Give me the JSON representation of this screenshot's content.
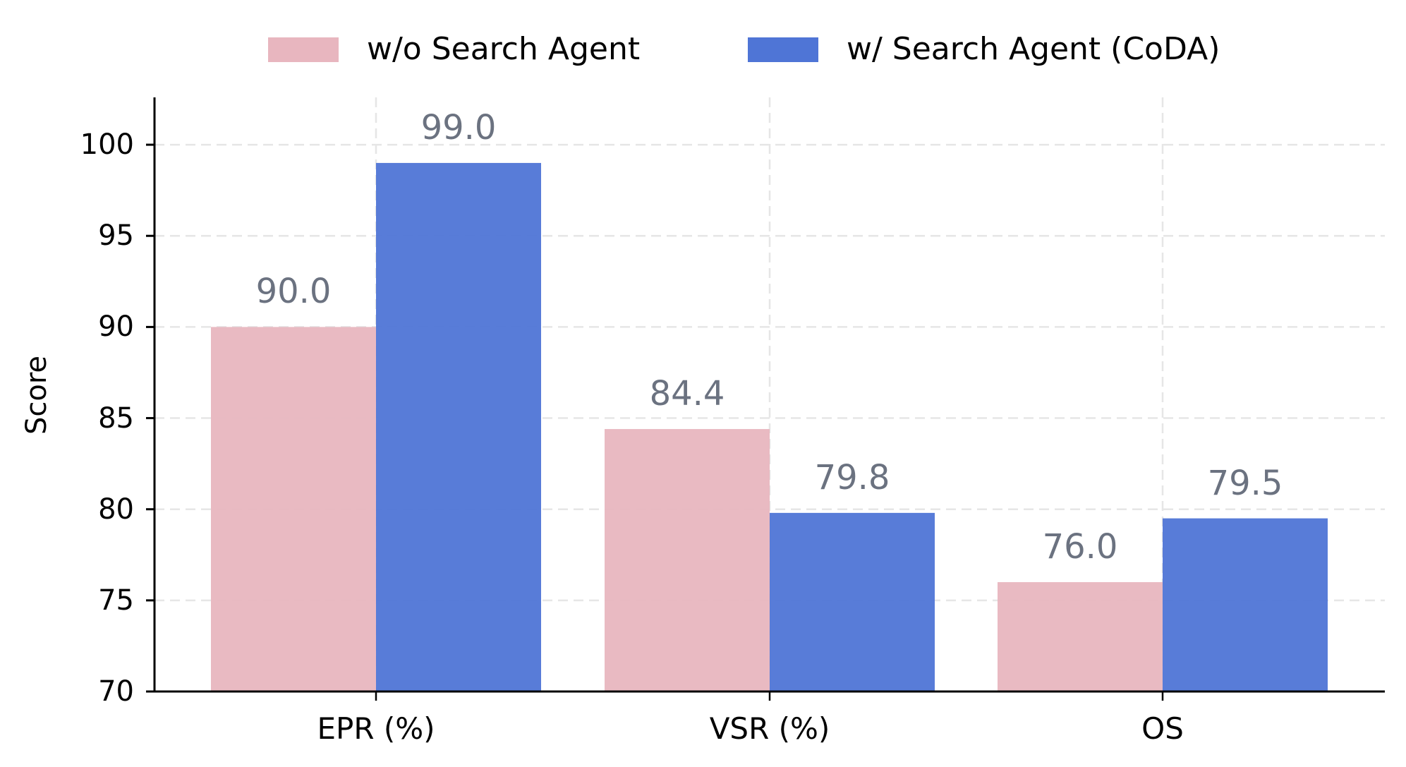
{
  "chart_data": {
    "type": "bar",
    "title": "",
    "xlabel": "",
    "ylabel": "Score",
    "ylim": [
      70,
      102.5
    ],
    "yticks": [
      70,
      75,
      80,
      85,
      90,
      95,
      100
    ],
    "grid": true,
    "legend_position": "top-center",
    "categories": [
      "EPR (%)",
      "VSR (%)",
      "OS"
    ],
    "series": [
      {
        "name": "w/o Search Agent",
        "color": "#e8b6bf",
        "values": [
          90.0,
          84.4,
          76.0
        ],
        "labels": [
          "90.0",
          "84.4",
          "76.0"
        ]
      },
      {
        "name": "w/ Search Agent (CoDA)",
        "color": "#4f75d6",
        "values": [
          99.0,
          79.8,
          79.5
        ],
        "labels": [
          "99.0",
          "79.8",
          "79.5"
        ]
      }
    ],
    "value_label_color": "#6b7280"
  },
  "legend": {
    "items": [
      {
        "label": "w/o Search Agent",
        "color": "#e8b6bf"
      },
      {
        "label": "w/ Search Agent (CoDA)",
        "color": "#4f75d6"
      }
    ]
  },
  "axes": {
    "ylabel": "Score",
    "yticks": [
      "70",
      "75",
      "80",
      "85",
      "90",
      "95",
      "100"
    ],
    "xticks": [
      "EPR (%)",
      "VSR (%)",
      "OS"
    ]
  }
}
